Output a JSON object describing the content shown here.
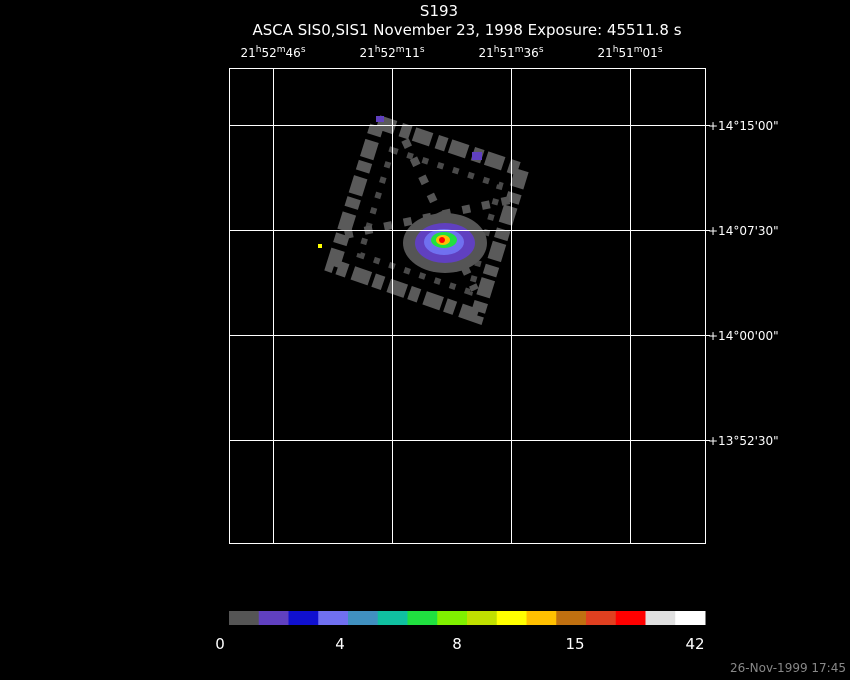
{
  "header": {
    "title": "S193",
    "subtitle": "ASCA SIS0,SIS1 November 23, 1998 Exposure: 45511.8 s"
  },
  "ra_labels": [
    [
      "21",
      "h",
      "52",
      "m",
      "46",
      "s"
    ],
    [
      "21",
      "h",
      "52",
      "m",
      "11",
      "s"
    ],
    [
      "21",
      "h",
      "51",
      "m",
      "36",
      "s"
    ],
    [
      "21",
      "h",
      "51",
      "m",
      "01",
      "s"
    ]
  ],
  "dec_labels": [
    "+14°15'00\"",
    "+14°07'30\"",
    "+14°00'00\"",
    "+13°52'30\""
  ],
  "colorbar_labels": [
    0,
    4,
    8,
    15,
    42
  ],
  "footer": "26-Nov-1999 17:45"
}
